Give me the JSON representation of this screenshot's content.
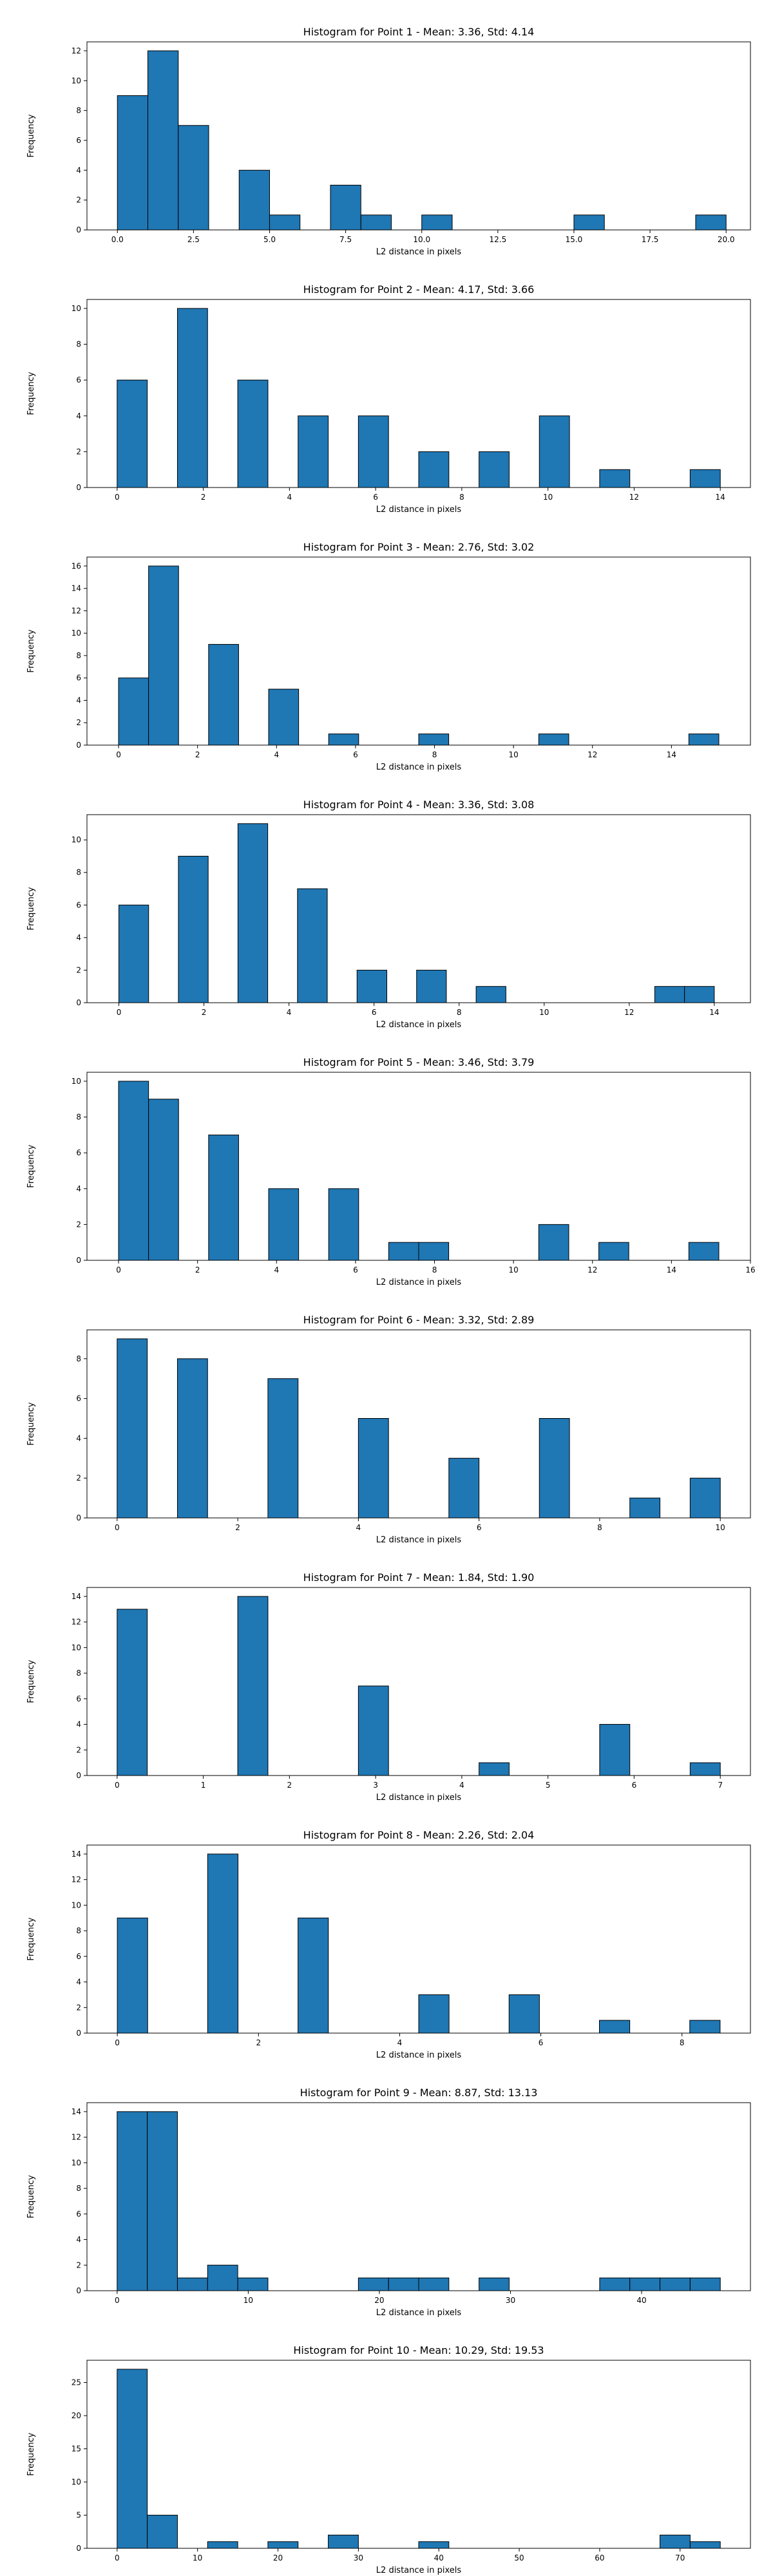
{
  "figure": {
    "x_axis_label": "L2 distance in pixels",
    "y_axis_label": "Frequency",
    "bar_color": "#1f77b4",
    "edge_color": "#000000"
  },
  "chart_data": [
    {
      "type": "bar",
      "title": "Histogram for Point 1 - Mean: 3.36, Std: 4.14",
      "xlabel": "L2 distance in pixels",
      "ylabel": "Frequency",
      "xlim": [
        -1.0,
        20.8
      ],
      "ylim": [
        0,
        12.6
      ],
      "xticks": [
        0.0,
        2.5,
        5.0,
        7.5,
        10.0,
        12.5,
        15.0,
        17.5,
        20.0
      ],
      "xtick_labels": [
        "0.0",
        "2.5",
        "5.0",
        "7.5",
        "10.0",
        "12.5",
        "15.0",
        "17.5",
        "20.0"
      ],
      "yticks": [
        0,
        2,
        4,
        6,
        8,
        10,
        12
      ],
      "grid": false,
      "bins": [
        {
          "x0": 0.0,
          "x1": 1.0,
          "value": 9
        },
        {
          "x0": 1.0,
          "x1": 2.0,
          "value": 12
        },
        {
          "x0": 2.0,
          "x1": 3.0,
          "value": 7
        },
        {
          "x0": 4.0,
          "x1": 5.0,
          "value": 4
        },
        {
          "x0": 5.0,
          "x1": 6.0,
          "value": 1
        },
        {
          "x0": 7.0,
          "x1": 8.0,
          "value": 3
        },
        {
          "x0": 8.0,
          "x1": 9.0,
          "value": 1
        },
        {
          "x0": 10.0,
          "x1": 11.0,
          "value": 1
        },
        {
          "x0": 15.0,
          "x1": 16.0,
          "value": 1
        },
        {
          "x0": 19.0,
          "x1": 20.0,
          "value": 1
        }
      ]
    },
    {
      "type": "bar",
      "title": "Histogram for Point 2 - Mean: 4.17, Std: 3.66",
      "xlabel": "L2 distance in pixels",
      "ylabel": "Frequency",
      "xlim": [
        -0.7,
        14.7
      ],
      "ylim": [
        0,
        10.5
      ],
      "xticks": [
        0,
        2,
        4,
        6,
        8,
        10,
        12,
        14
      ],
      "xtick_labels": [
        "0",
        "2",
        "4",
        "6",
        "8",
        "10",
        "12",
        "14"
      ],
      "yticks": [
        0,
        2,
        4,
        6,
        8,
        10
      ],
      "grid": false,
      "bins": [
        {
          "x0": 0.0,
          "x1": 0.7,
          "value": 6
        },
        {
          "x0": 1.4,
          "x1": 2.1,
          "value": 10
        },
        {
          "x0": 2.8,
          "x1": 3.5,
          "value": 6
        },
        {
          "x0": 4.2,
          "x1": 4.9,
          "value": 4
        },
        {
          "x0": 5.6,
          "x1": 6.3,
          "value": 4
        },
        {
          "x0": 7.0,
          "x1": 7.7,
          "value": 2
        },
        {
          "x0": 8.4,
          "x1": 9.1,
          "value": 2
        },
        {
          "x0": 9.8,
          "x1": 10.5,
          "value": 4
        },
        {
          "x0": 11.2,
          "x1": 11.9,
          "value": 1
        },
        {
          "x0": 13.3,
          "x1": 14.0,
          "value": 1
        }
      ]
    },
    {
      "type": "bar",
      "title": "Histogram for Point 3 - Mean: 2.76, Std: 3.02",
      "xlabel": "L2 distance in pixels",
      "ylabel": "Frequency",
      "xlim": [
        -0.8,
        16.0
      ],
      "ylim": [
        0,
        16.8
      ],
      "xticks": [
        0,
        2,
        4,
        6,
        8,
        10,
        12,
        14
      ],
      "xtick_labels": [
        "0",
        "2",
        "4",
        "6",
        "8",
        "10",
        "12",
        "14"
      ],
      "yticks": [
        0,
        2,
        4,
        6,
        8,
        10,
        12,
        14,
        16
      ],
      "grid": false,
      "bins": [
        {
          "x0": 0.0,
          "x1": 0.76,
          "value": 6
        },
        {
          "x0": 0.76,
          "x1": 1.52,
          "value": 16
        },
        {
          "x0": 2.28,
          "x1": 3.04,
          "value": 9
        },
        {
          "x0": 3.8,
          "x1": 4.56,
          "value": 5
        },
        {
          "x0": 5.32,
          "x1": 6.08,
          "value": 1
        },
        {
          "x0": 7.6,
          "x1": 8.36,
          "value": 1
        },
        {
          "x0": 10.64,
          "x1": 11.4,
          "value": 1
        },
        {
          "x0": 14.44,
          "x1": 15.2,
          "value": 1
        }
      ]
    },
    {
      "type": "bar",
      "title": "Histogram for Point 4 - Mean: 3.36, Std: 3.08",
      "xlabel": "L2 distance in pixels",
      "ylabel": "Frequency",
      "xlim": [
        -0.75,
        14.85
      ],
      "ylim": [
        0,
        11.55
      ],
      "xticks": [
        0,
        2,
        4,
        6,
        8,
        10,
        12,
        14
      ],
      "xtick_labels": [
        "0",
        "2",
        "4",
        "6",
        "8",
        "10",
        "12",
        "14"
      ],
      "yticks": [
        0,
        2,
        4,
        6,
        8,
        10
      ],
      "grid": false,
      "bins": [
        {
          "x0": 0.0,
          "x1": 0.7,
          "value": 6
        },
        {
          "x0": 1.4,
          "x1": 2.1,
          "value": 9
        },
        {
          "x0": 2.8,
          "x1": 3.5,
          "value": 11
        },
        {
          "x0": 4.2,
          "x1": 4.9,
          "value": 7
        },
        {
          "x0": 5.6,
          "x1": 6.3,
          "value": 2
        },
        {
          "x0": 7.0,
          "x1": 7.7,
          "value": 2
        },
        {
          "x0": 8.4,
          "x1": 9.1,
          "value": 1
        },
        {
          "x0": 12.6,
          "x1": 13.3,
          "value": 1
        },
        {
          "x0": 13.3,
          "x1": 14.0,
          "value": 1
        }
      ]
    },
    {
      "type": "bar",
      "title": "Histogram for Point 5 - Mean: 3.46, Std: 3.79",
      "xlabel": "L2 distance in pixels",
      "ylabel": "Frequency",
      "xlim": [
        -0.8,
        16.0
      ],
      "ylim": [
        0,
        10.5
      ],
      "xticks": [
        0,
        2,
        4,
        6,
        8,
        10,
        12,
        14,
        16
      ],
      "xtick_labels": [
        "0",
        "2",
        "4",
        "6",
        "8",
        "10",
        "12",
        "14",
        "16"
      ],
      "yticks": [
        0,
        2,
        4,
        6,
        8,
        10
      ],
      "grid": false,
      "bins": [
        {
          "x0": 0.0,
          "x1": 0.76,
          "value": 10
        },
        {
          "x0": 0.76,
          "x1": 1.52,
          "value": 9
        },
        {
          "x0": 2.28,
          "x1": 3.04,
          "value": 7
        },
        {
          "x0": 3.8,
          "x1": 4.56,
          "value": 4
        },
        {
          "x0": 5.32,
          "x1": 6.08,
          "value": 4
        },
        {
          "x0": 6.84,
          "x1": 7.6,
          "value": 1
        },
        {
          "x0": 7.6,
          "x1": 8.36,
          "value": 1
        },
        {
          "x0": 10.64,
          "x1": 11.4,
          "value": 2
        },
        {
          "x0": 12.16,
          "x1": 12.92,
          "value": 1
        },
        {
          "x0": 14.44,
          "x1": 15.2,
          "value": 1
        }
      ]
    },
    {
      "type": "bar",
      "title": "Histogram for Point 6 - Mean: 3.32, Std: 2.89",
      "xlabel": "L2 distance in pixels",
      "ylabel": "Frequency",
      "xlim": [
        -0.5,
        10.5
      ],
      "ylim": [
        0,
        9.45
      ],
      "xticks": [
        0,
        2,
        4,
        6,
        8,
        10
      ],
      "xtick_labels": [
        "0",
        "2",
        "4",
        "6",
        "8",
        "10"
      ],
      "yticks": [
        0,
        2,
        4,
        6,
        8
      ],
      "grid": false,
      "bins": [
        {
          "x0": 0.0,
          "x1": 0.5,
          "value": 9
        },
        {
          "x0": 1.0,
          "x1": 1.5,
          "value": 8
        },
        {
          "x0": 2.5,
          "x1": 3.0,
          "value": 7
        },
        {
          "x0": 4.0,
          "x1": 4.5,
          "value": 5
        },
        {
          "x0": 5.5,
          "x1": 6.0,
          "value": 3
        },
        {
          "x0": 7.0,
          "x1": 7.5,
          "value": 5
        },
        {
          "x0": 8.5,
          "x1": 9.0,
          "value": 1
        },
        {
          "x0": 9.5,
          "x1": 10.0,
          "value": 2
        }
      ]
    },
    {
      "type": "bar",
      "title": "Histogram for Point 7 - Mean: 1.84, Std: 1.90",
      "xlabel": "L2 distance in pixels",
      "ylabel": "Frequency",
      "xlim": [
        -0.35,
        7.35
      ],
      "ylim": [
        0,
        14.7
      ],
      "xticks": [
        0,
        1,
        2,
        3,
        4,
        5,
        6,
        7
      ],
      "xtick_labels": [
        "0",
        "1",
        "2",
        "3",
        "4",
        "5",
        "6",
        "7"
      ],
      "yticks": [
        0,
        2,
        4,
        6,
        8,
        10,
        12,
        14
      ],
      "grid": false,
      "bins": [
        {
          "x0": 0.0,
          "x1": 0.35,
          "value": 13
        },
        {
          "x0": 1.4,
          "x1": 1.75,
          "value": 14
        },
        {
          "x0": 2.8,
          "x1": 3.15,
          "value": 7
        },
        {
          "x0": 4.2,
          "x1": 4.55,
          "value": 1
        },
        {
          "x0": 5.6,
          "x1": 5.95,
          "value": 4
        },
        {
          "x0": 6.65,
          "x1": 7.0,
          "value": 1
        }
      ]
    },
    {
      "type": "bar",
      "title": "Histogram for Point 8 - Mean: 2.26, Std: 2.04",
      "xlabel": "L2 distance in pixels",
      "ylabel": "Frequency",
      "xlim": [
        -0.43,
        8.97
      ],
      "ylim": [
        0,
        14.7
      ],
      "xticks": [
        0,
        2,
        4,
        6,
        8
      ],
      "xtick_labels": [
        "0",
        "2",
        "4",
        "6",
        "8"
      ],
      "yticks": [
        0,
        2,
        4,
        6,
        8,
        10,
        12,
        14
      ],
      "grid": false,
      "bins": [
        {
          "x0": 0.0,
          "x1": 0.43,
          "value": 9
        },
        {
          "x0": 1.28,
          "x1": 1.71,
          "value": 14
        },
        {
          "x0": 2.56,
          "x1": 2.99,
          "value": 9
        },
        {
          "x0": 4.27,
          "x1": 4.7,
          "value": 3
        },
        {
          "x0": 5.55,
          "x1": 5.98,
          "value": 3
        },
        {
          "x0": 6.83,
          "x1": 7.26,
          "value": 1
        },
        {
          "x0": 8.11,
          "x1": 8.54,
          "value": 1
        }
      ]
    },
    {
      "type": "bar",
      "title": "Histogram for Point 9 - Mean: 8.87, Std: 13.13",
      "xlabel": "L2 distance in pixels",
      "ylabel": "Frequency",
      "xlim": [
        -2.3,
        48.3
      ],
      "ylim": [
        0,
        14.7
      ],
      "xticks": [
        0,
        10,
        20,
        30,
        40
      ],
      "xtick_labels": [
        "0",
        "10",
        "20",
        "30",
        "40"
      ],
      "yticks": [
        0,
        2,
        4,
        6,
        8,
        10,
        12,
        14
      ],
      "grid": false,
      "bins": [
        {
          "x0": 0.0,
          "x1": 2.3,
          "value": 14
        },
        {
          "x0": 2.3,
          "x1": 4.6,
          "value": 14
        },
        {
          "x0": 4.6,
          "x1": 6.9,
          "value": 1
        },
        {
          "x0": 6.9,
          "x1": 9.2,
          "value": 2
        },
        {
          "x0": 9.2,
          "x1": 11.5,
          "value": 1
        },
        {
          "x0": 18.4,
          "x1": 20.7,
          "value": 1
        },
        {
          "x0": 20.7,
          "x1": 23.0,
          "value": 1
        },
        {
          "x0": 23.0,
          "x1": 25.3,
          "value": 1
        },
        {
          "x0": 27.6,
          "x1": 29.9,
          "value": 1
        },
        {
          "x0": 36.8,
          "x1": 39.1,
          "value": 1
        },
        {
          "x0": 39.1,
          "x1": 41.4,
          "value": 1
        },
        {
          "x0": 41.4,
          "x1": 43.7,
          "value": 1
        },
        {
          "x0": 43.7,
          "x1": 46.0,
          "value": 1
        }
      ]
    },
    {
      "type": "bar",
      "title": "Histogram for Point 10 - Mean: 10.29, Std: 19.53",
      "xlabel": "L2 distance in pixels",
      "ylabel": "Frequency",
      "xlim": [
        -3.75,
        78.75
      ],
      "ylim": [
        0,
        28.35
      ],
      "xticks": [
        0,
        10,
        20,
        30,
        40,
        50,
        60,
        70
      ],
      "xtick_labels": [
        "0",
        "10",
        "20",
        "30",
        "40",
        "50",
        "60",
        "70"
      ],
      "yticks": [
        0,
        5,
        10,
        15,
        20,
        25
      ],
      "grid": false,
      "bins": [
        {
          "x0": 0.0,
          "x1": 3.75,
          "value": 27
        },
        {
          "x0": 3.75,
          "x1": 7.5,
          "value": 5
        },
        {
          "x0": 11.25,
          "x1": 15.0,
          "value": 1
        },
        {
          "x0": 18.75,
          "x1": 22.5,
          "value": 1
        },
        {
          "x0": 26.25,
          "x1": 30.0,
          "value": 2
        },
        {
          "x0": 37.5,
          "x1": 41.25,
          "value": 1
        },
        {
          "x0": 67.5,
          "x1": 71.25,
          "value": 2
        },
        {
          "x0": 71.25,
          "x1": 75.0,
          "value": 1
        }
      ]
    }
  ]
}
